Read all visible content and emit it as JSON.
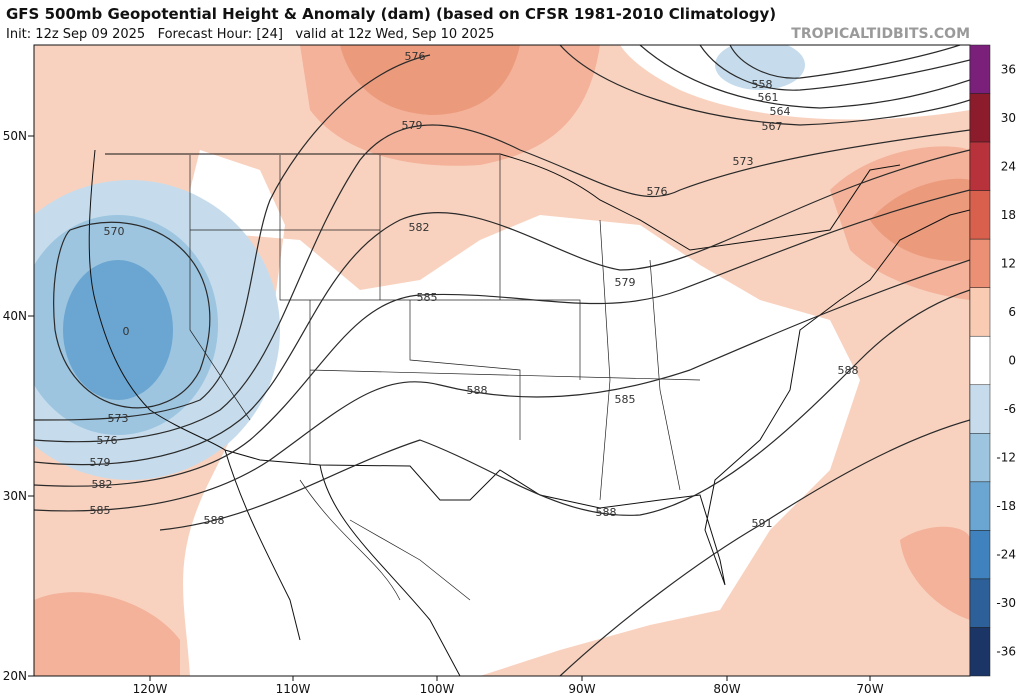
{
  "header": {
    "title": "GFS 500mb Geopotential Height & Anomaly (dam) (based on CFSR 1981-2010 Climatology)",
    "subtitle": "Init: 12z Sep 09 2025   Forecast Hour: [24]   valid at 12z Wed, Sep 10 2025",
    "site": "TROPICALTIDBITS.COM"
  },
  "map": {
    "lat_labels": [
      "50N",
      "40N",
      "30N",
      "20N"
    ],
    "lon_labels": [
      "120W",
      "110W",
      "100W",
      "90W",
      "80W",
      "70W"
    ],
    "contour_labels": [
      576,
      558,
      561,
      564,
      567,
      573,
      576,
      579,
      582,
      585,
      579,
      588,
      585,
      588,
      588,
      588,
      591,
      570,
      573,
      576,
      579,
      582,
      585,
      0
    ]
  },
  "colorbar": {
    "ticks": [
      36,
      30,
      24,
      18,
      12,
      6,
      0,
      -6,
      -12,
      -18,
      -24,
      -30,
      -36
    ]
  }
}
